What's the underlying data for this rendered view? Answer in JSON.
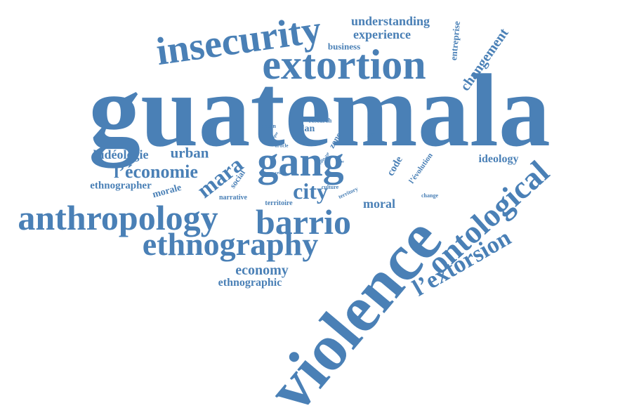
{
  "theme": {
    "word_color": "#4a80b6",
    "background": "#ffffff"
  },
  "words": [
    {
      "id": "guatemala",
      "text": "guatemala",
      "size": 148,
      "rotate": 0
    },
    {
      "id": "violence",
      "text": "violence",
      "size": 94,
      "rotate": -50
    },
    {
      "id": "extortion",
      "text": "extortion",
      "size": 60,
      "rotate": 0
    },
    {
      "id": "insecurity",
      "text": "insecurity",
      "size": 56,
      "rotate": -8
    },
    {
      "id": "gang",
      "text": "gang",
      "size": 60,
      "rotate": 0
    },
    {
      "id": "anthropology",
      "text": "anthropology",
      "size": 50,
      "rotate": 0
    },
    {
      "id": "barrio",
      "text": "barrio",
      "size": 50,
      "rotate": 0
    },
    {
      "id": "ethnography",
      "text": "ethnography",
      "size": 46,
      "rotate": 0
    },
    {
      "id": "ontological",
      "text": "ontological",
      "size": 46,
      "rotate": -42
    },
    {
      "id": "l-extorsion",
      "text": "l’extorsion",
      "size": 34,
      "rotate": -30
    },
    {
      "id": "changement",
      "text": "changement",
      "size": 20,
      "rotate": -55
    },
    {
      "id": "mara",
      "text": "mara",
      "size": 32,
      "rotate": -38
    },
    {
      "id": "city",
      "text": "city",
      "size": 32,
      "rotate": 0
    },
    {
      "id": "l-economie",
      "text": "l’économie",
      "size": 26,
      "rotate": 0
    },
    {
      "id": "l-ideologie",
      "text": "l’idéologie",
      "size": 18,
      "rotate": 0
    },
    {
      "id": "urban",
      "text": "urban",
      "size": 21,
      "rotate": 0
    },
    {
      "id": "economy",
      "text": "economy",
      "size": 20,
      "rotate": 0
    },
    {
      "id": "ethnographic",
      "text": "ethnographic",
      "size": 16,
      "rotate": 0
    },
    {
      "id": "ethnographer",
      "text": "ethnographer",
      "size": 15,
      "rotate": 0
    },
    {
      "id": "morale",
      "text": "morale",
      "size": 14,
      "rotate": -15
    },
    {
      "id": "understanding",
      "text": "understanding",
      "size": 18,
      "rotate": 0
    },
    {
      "id": "experience",
      "text": "experience",
      "size": 18,
      "rotate": 0
    },
    {
      "id": "business",
      "text": "business",
      "size": 13,
      "rotate": 0
    },
    {
      "id": "entreprise",
      "text": "entreprise",
      "size": 13,
      "rotate": -85
    },
    {
      "id": "ideology",
      "text": "ideology",
      "size": 16,
      "rotate": 0
    },
    {
      "id": "moral",
      "text": "moral",
      "size": 18,
      "rotate": 0
    },
    {
      "id": "code",
      "text": "code",
      "size": 15,
      "rotate": -60
    },
    {
      "id": "l-evolution",
      "text": "l’évolution",
      "size": 11,
      "rotate": -55
    },
    {
      "id": "social",
      "text": "social",
      "size": 12,
      "rotate": -55
    },
    {
      "id": "narrative",
      "text": "narrative",
      "size": 10,
      "rotate": 0
    },
    {
      "id": "territoire",
      "text": "territoire",
      "size": 10,
      "rotate": 0
    },
    {
      "id": "culture",
      "text": "culture",
      "size": 8,
      "rotate": 0
    },
    {
      "id": "territory",
      "text": "territory",
      "size": 8,
      "rotate": -25
    },
    {
      "id": "change",
      "text": "change",
      "size": 8,
      "rotate": 0
    },
    {
      "id": "prison",
      "text": "prison",
      "size": 8,
      "rotate": 0
    },
    {
      "id": "research",
      "text": "research",
      "size": 9,
      "rotate": 0
    },
    {
      "id": "dan",
      "text": "dan",
      "size": 14,
      "rotate": 0
    },
    {
      "id": "article",
      "text": "article",
      "size": 7,
      "rotate": 0
    },
    {
      "id": "clique",
      "text": "clique",
      "size": 6,
      "rotate": -55
    },
    {
      "id": "group",
      "text": "group",
      "size": 7,
      "rotate": 0
    },
    {
      "id": "zone",
      "text": "zone",
      "size": 12,
      "rotate": -60
    },
    {
      "id": "crime",
      "text": "crime",
      "size": 6,
      "rotate": 0
    },
    {
      "id": "ville",
      "text": "ville",
      "size": 6,
      "rotate": -55
    },
    {
      "id": "bout",
      "text": "bout",
      "size": 5,
      "rotate": -80
    },
    {
      "id": "bilge",
      "text": "bilge",
      "size": 5,
      "rotate": -70
    },
    {
      "id": "vue",
      "text": "vue",
      "size": 5,
      "rotate": 0
    }
  ]
}
